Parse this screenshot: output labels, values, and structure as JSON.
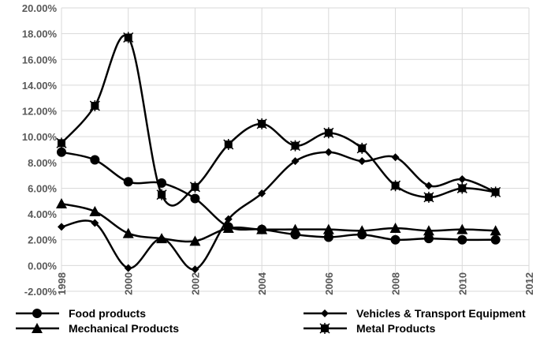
{
  "chart_data": {
    "type": "line",
    "title": "",
    "xlabel": "",
    "ylabel": "",
    "xlim": [
      1998,
      2012
    ],
    "ylim": [
      -2,
      20
    ],
    "x_ticks": [
      "1998",
      "2000",
      "2002",
      "2004",
      "2006",
      "2008",
      "2010",
      "2012"
    ],
    "y_ticks": [
      "-2.00%",
      "0.00%",
      "2.00%",
      "4.00%",
      "6.00%",
      "8.00%",
      "10.00%",
      "12.00%",
      "14.00%",
      "16.00%",
      "18.00%",
      "20.00%"
    ],
    "grid": true,
    "legend_position": "bottom",
    "x": [
      1998,
      1999,
      2000,
      2001,
      2002,
      2003,
      2004,
      2005,
      2006,
      2007,
      2008,
      2009,
      2010,
      2011
    ],
    "series": [
      {
        "name": "Food products",
        "marker": "circle",
        "values": [
          8.8,
          8.2,
          6.5,
          6.4,
          5.2,
          3.0,
          2.8,
          2.4,
          2.2,
          2.4,
          2.0,
          2.1,
          2.0,
          2.0
        ]
      },
      {
        "name": "Vehicles & Transport Equipment",
        "marker": "diamond",
        "values": [
          3.0,
          3.3,
          -0.2,
          2.1,
          -0.3,
          3.6,
          5.6,
          8.1,
          8.8,
          8.1,
          8.4,
          6.2,
          6.7,
          5.7
        ]
      },
      {
        "name": "Mechanical Products",
        "marker": "triangle",
        "values": [
          4.8,
          4.2,
          2.5,
          2.1,
          1.9,
          2.9,
          2.8,
          2.8,
          2.8,
          2.7,
          2.9,
          2.7,
          2.8,
          2.7
        ]
      },
      {
        "name": "Metal Products",
        "marker": "star-square",
        "values": [
          9.5,
          12.4,
          17.7,
          5.5,
          6.1,
          9.4,
          11.0,
          9.3,
          10.3,
          9.1,
          6.2,
          5.3,
          6.0,
          5.7
        ]
      }
    ]
  }
}
